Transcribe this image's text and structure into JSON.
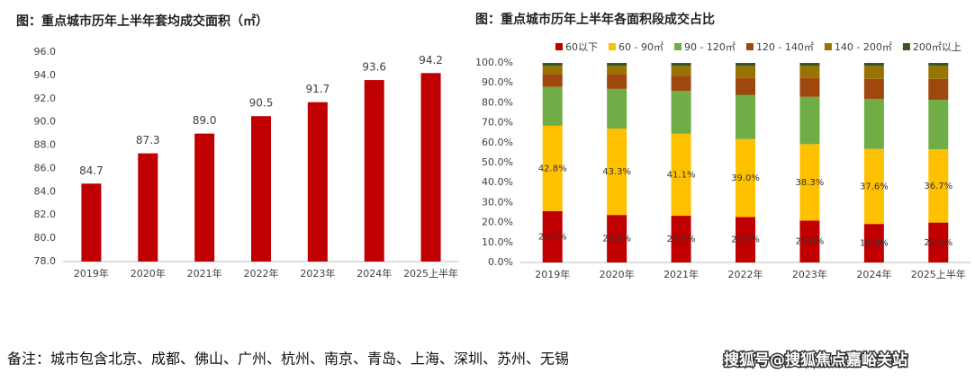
{
  "chart_data": [
    {
      "type": "bar",
      "title": "图：重点城市历年上半年套均成交面积（㎡）",
      "categories": [
        "2019年",
        "2020年",
        "2021年",
        "2022年",
        "2023年",
        "2024年",
        "2025上半年"
      ],
      "values": [
        84.7,
        87.3,
        89.0,
        90.5,
        91.7,
        93.6,
        94.2
      ],
      "value_labels": [
        "84.7",
        "87.3",
        "89.0",
        "90.5",
        "91.7",
        "93.6",
        "94.2"
      ],
      "color": "#c00000",
      "ylim": [
        78,
        96
      ],
      "yticks": [
        {
          "value": 78,
          "label": "78.0"
        },
        {
          "value": 80,
          "label": "80.0"
        },
        {
          "value": 82,
          "label": "82.0"
        },
        {
          "value": 84,
          "label": "84.0"
        },
        {
          "value": 86,
          "label": "86.0"
        },
        {
          "value": 88,
          "label": "88.0"
        },
        {
          "value": 90,
          "label": "90.0"
        },
        {
          "value": 92,
          "label": "92.0"
        },
        {
          "value": 94,
          "label": "94.0"
        },
        {
          "value": 96,
          "label": "96.0"
        }
      ],
      "grid": false
    },
    {
      "type": "stacked_bar",
      "title": "图：重点城市历年上半年各面积段成交占比",
      "categories": [
        "2019年",
        "2020年",
        "2021年",
        "2022年",
        "2023年",
        "2024年",
        "2025上半年"
      ],
      "series": [
        {
          "name": "60以下",
          "color": "#c00000",
          "values": [
            25.7,
            23.8,
            23.4,
            22.8,
            21.0,
            19.3,
            20.0
          ],
          "value_labels": [
            "25.7%",
            "23.8%",
            "23.4%",
            "22.8%",
            "21.0%",
            "19.3%",
            "20.0%"
          ]
        },
        {
          "name": "60 - 90㎡",
          "color": "#ffc000",
          "values": [
            42.8,
            43.3,
            41.1,
            39.0,
            38.3,
            37.6,
            36.7
          ],
          "value_labels": [
            "42.8%",
            "43.3%",
            "41.1%",
            "39.0%",
            "38.3%",
            "37.6%",
            "36.7%"
          ]
        },
        {
          "name": "90 - 120㎡",
          "color": "#70ad47",
          "values": [
            19.5,
            19.9,
            21.5,
            22.2,
            23.7,
            25.1,
            24.8
          ]
        },
        {
          "name": "120 - 140㎡",
          "color": "#9e480e",
          "values": [
            6.5,
            7.5,
            7.5,
            8.5,
            9.5,
            10,
            10.5
          ]
        },
        {
          "name": "140 - 200㎡",
          "color": "#997300",
          "values": [
            4,
            4,
            5,
            6,
            6,
            6.5,
            6.5
          ]
        },
        {
          "name": "200㎡以上",
          "color": "#375623",
          "values": [
            1.5,
            1.5,
            1.5,
            1.5,
            1.5,
            1.5,
            1.5
          ]
        }
      ],
      "ylim": [
        0,
        100
      ],
      "yticks": [
        {
          "value": 0,
          "label": "0.0%"
        },
        {
          "value": 10,
          "label": "10.0%"
        },
        {
          "value": 20,
          "label": "20.0%"
        },
        {
          "value": 30,
          "label": "30.0%"
        },
        {
          "value": 40,
          "label": "40.0%"
        },
        {
          "value": 50,
          "label": "50.0%"
        },
        {
          "value": 60,
          "label": "60.0%"
        },
        {
          "value": 70,
          "label": "70.0%"
        },
        {
          "value": 80,
          "label": "80.0%"
        },
        {
          "value": 90,
          "label": "90.0%"
        },
        {
          "value": 100,
          "label": "100.0%"
        }
      ],
      "grid": false,
      "legend": "top"
    }
  ],
  "footnote": "备注：城市包含北京、成都、佛山、广州、杭州、南京、青岛、上海、深圳、苏州、无锡",
  "watermark": "搜狐号@搜狐焦点嘉峪关站"
}
